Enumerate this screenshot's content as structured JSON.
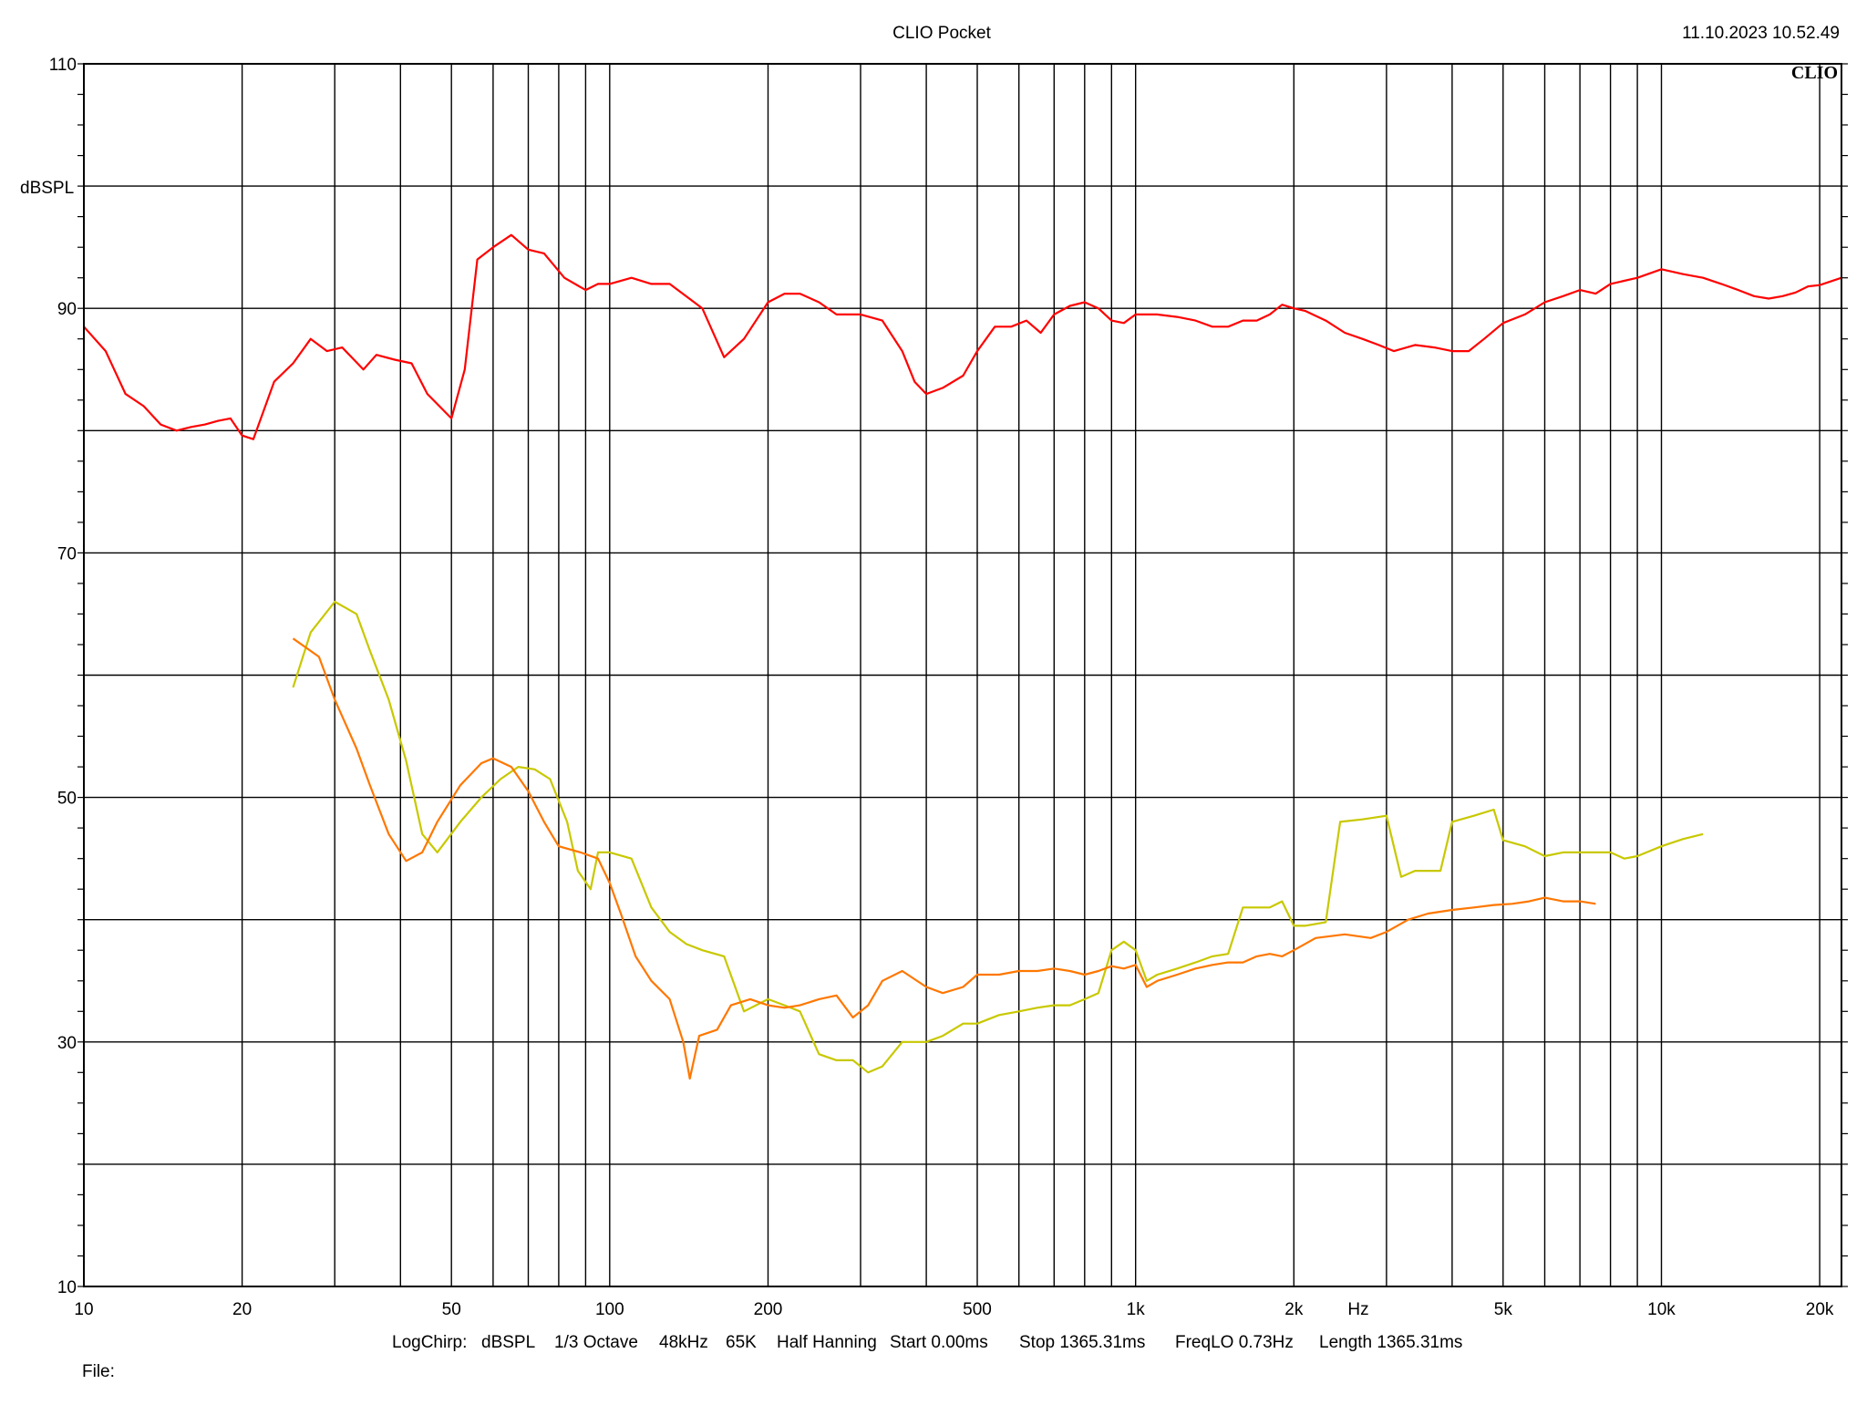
{
  "header": {
    "title": "CLIO Pocket",
    "timestamp": "11.10.2023 10.52.49",
    "logo": "CLIO"
  },
  "params": {
    "labels": [
      "LogChirp:",
      "dBSPL",
      "1/3 Octave",
      "48kHz",
      "65K",
      "Half Hanning",
      "Start 0.00ms",
      "Stop 1365.31ms",
      "FreqLO 0.73Hz",
      "Length 1365.31ms"
    ]
  },
  "footer": {
    "file_label": "File:"
  },
  "chart_data": {
    "type": "line",
    "title": "CLIO Pocket",
    "xlabel": "Hz",
    "ylabel": "dBSPL",
    "xscale": "log",
    "xlim": [
      10,
      22000
    ],
    "ylim": [
      10,
      110
    ],
    "grid": true,
    "xticks": [
      {
        "v": 10,
        "label": "10"
      },
      {
        "v": 20,
        "label": "20"
      },
      {
        "v": 50,
        "label": "50"
      },
      {
        "v": 100,
        "label": "100"
      },
      {
        "v": 200,
        "label": "200"
      },
      {
        "v": 500,
        "label": "500"
      },
      {
        "v": 1000,
        "label": "1k"
      },
      {
        "v": 2000,
        "label": "2k"
      },
      {
        "v": 5000,
        "label": "5k"
      },
      {
        "v": 10000,
        "label": "10k"
      },
      {
        "v": 20000,
        "label": "20k"
      }
    ],
    "xgrid": [
      10,
      20,
      30,
      40,
      50,
      60,
      70,
      80,
      90,
      100,
      200,
      300,
      400,
      500,
      600,
      700,
      800,
      900,
      1000,
      2000,
      3000,
      4000,
      5000,
      6000,
      7000,
      8000,
      9000,
      10000,
      20000
    ],
    "yticks": [
      {
        "v": 10,
        "label": "10"
      },
      {
        "v": 30,
        "label": "30"
      },
      {
        "v": 50,
        "label": "50"
      },
      {
        "v": 70,
        "label": "70"
      },
      {
        "v": 90,
        "label": "90"
      },
      {
        "v": 110,
        "label": "110"
      }
    ],
    "ygrid": [
      10,
      20,
      30,
      40,
      50,
      60,
      70,
      80,
      90,
      100,
      110
    ],
    "series": [
      {
        "color": "#ff0000",
        "points": [
          [
            10,
            88.5
          ],
          [
            11,
            86.5
          ],
          [
            12,
            83
          ],
          [
            13,
            82
          ],
          [
            14,
            80.5
          ],
          [
            15,
            80
          ],
          [
            16,
            80.3
          ],
          [
            17,
            80.5
          ],
          [
            18,
            80.8
          ],
          [
            19,
            81
          ],
          [
            20,
            79.6
          ],
          [
            21,
            79.3
          ],
          [
            23,
            84
          ],
          [
            25,
            85.5
          ],
          [
            27,
            87.5
          ],
          [
            29,
            86.5
          ],
          [
            31,
            86.8
          ],
          [
            34,
            85
          ],
          [
            36,
            86.2
          ],
          [
            39,
            85.8
          ],
          [
            42,
            85.5
          ],
          [
            45,
            83
          ],
          [
            50,
            81
          ],
          [
            53,
            85
          ],
          [
            56,
            94
          ],
          [
            60,
            95
          ],
          [
            65,
            96
          ],
          [
            70,
            94.8
          ],
          [
            75,
            94.5
          ],
          [
            82,
            92.5
          ],
          [
            90,
            91.5
          ],
          [
            95,
            92
          ],
          [
            100,
            92
          ],
          [
            110,
            92.5
          ],
          [
            120,
            92
          ],
          [
            130,
            92
          ],
          [
            150,
            90
          ],
          [
            165,
            86
          ],
          [
            180,
            87.5
          ],
          [
            200,
            90.5
          ],
          [
            215,
            91.2
          ],
          [
            230,
            91.2
          ],
          [
            250,
            90.5
          ],
          [
            270,
            89.5
          ],
          [
            300,
            89.5
          ],
          [
            330,
            89
          ],
          [
            360,
            86.5
          ],
          [
            380,
            84
          ],
          [
            400,
            83
          ],
          [
            430,
            83.5
          ],
          [
            470,
            84.5
          ],
          [
            500,
            86.5
          ],
          [
            540,
            88.5
          ],
          [
            580,
            88.5
          ],
          [
            620,
            89
          ],
          [
            660,
            88
          ],
          [
            700,
            89.5
          ],
          [
            750,
            90.2
          ],
          [
            800,
            90.5
          ],
          [
            850,
            90
          ],
          [
            900,
            89
          ],
          [
            950,
            88.8
          ],
          [
            1000,
            89.5
          ],
          [
            1100,
            89.5
          ],
          [
            1200,
            89.3
          ],
          [
            1300,
            89
          ],
          [
            1400,
            88.5
          ],
          [
            1500,
            88.5
          ],
          [
            1600,
            89
          ],
          [
            1700,
            89
          ],
          [
            1800,
            89.5
          ],
          [
            1900,
            90.3
          ],
          [
            2000,
            90
          ],
          [
            2100,
            89.8
          ],
          [
            2300,
            89
          ],
          [
            2500,
            88
          ],
          [
            2700,
            87.5
          ],
          [
            2900,
            87
          ],
          [
            3100,
            86.5
          ],
          [
            3400,
            87
          ],
          [
            3700,
            86.8
          ],
          [
            4000,
            86.5
          ],
          [
            4300,
            86.5
          ],
          [
            4600,
            87.5
          ],
          [
            5000,
            88.8
          ],
          [
            5500,
            89.5
          ],
          [
            6000,
            90.5
          ],
          [
            6500,
            91
          ],
          [
            7000,
            91.5
          ],
          [
            7500,
            91.2
          ],
          [
            8000,
            92
          ],
          [
            9000,
            92.5
          ],
          [
            10000,
            93.2
          ],
          [
            11000,
            92.8
          ],
          [
            12000,
            92.5
          ],
          [
            13000,
            92
          ],
          [
            14000,
            91.5
          ],
          [
            15000,
            91
          ],
          [
            16000,
            90.8
          ],
          [
            17000,
            91
          ],
          [
            18000,
            91.3
          ],
          [
            19000,
            91.8
          ],
          [
            20000,
            91.9
          ],
          [
            22000,
            92.5
          ]
        ]
      },
      {
        "color": "#c8c800",
        "points": [
          [
            25,
            59
          ],
          [
            27,
            63.5
          ],
          [
            30,
            66
          ],
          [
            33,
            65
          ],
          [
            35,
            62
          ],
          [
            38,
            58
          ],
          [
            41,
            53
          ],
          [
            44,
            47
          ],
          [
            47,
            45.5
          ],
          [
            52,
            48
          ],
          [
            57,
            50
          ],
          [
            62,
            51.5
          ],
          [
            67,
            52.5
          ],
          [
            72,
            52.3
          ],
          [
            77,
            51.5
          ],
          [
            83,
            48
          ],
          [
            87,
            44
          ],
          [
            92,
            42.5
          ],
          [
            95,
            45.5
          ],
          [
            100,
            45.5
          ],
          [
            110,
            45
          ],
          [
            120,
            41
          ],
          [
            130,
            39
          ],
          [
            140,
            38
          ],
          [
            150,
            37.5
          ],
          [
            165,
            37
          ],
          [
            180,
            32.5
          ],
          [
            200,
            33.5
          ],
          [
            215,
            33
          ],
          [
            230,
            32.5
          ],
          [
            250,
            29
          ],
          [
            270,
            28.5
          ],
          [
            290,
            28.5
          ],
          [
            310,
            27.5
          ],
          [
            330,
            28
          ],
          [
            360,
            30
          ],
          [
            400,
            30
          ],
          [
            430,
            30.5
          ],
          [
            470,
            31.5
          ],
          [
            500,
            31.5
          ],
          [
            550,
            32.2
          ],
          [
            600,
            32.5
          ],
          [
            650,
            32.8
          ],
          [
            700,
            33
          ],
          [
            750,
            33
          ],
          [
            800,
            33.5
          ],
          [
            850,
            34
          ],
          [
            900,
            37.5
          ],
          [
            950,
            38.2
          ],
          [
            1000,
            37.5
          ],
          [
            1050,
            35
          ],
          [
            1100,
            35.5
          ],
          [
            1200,
            36
          ],
          [
            1300,
            36.5
          ],
          [
            1400,
            37
          ],
          [
            1500,
            37.2
          ],
          [
            1600,
            41
          ],
          [
            1700,
            41
          ],
          [
            1800,
            41
          ],
          [
            1900,
            41.5
          ],
          [
            2000,
            39.5
          ],
          [
            2100,
            39.5
          ],
          [
            2300,
            39.8
          ],
          [
            2450,
            48
          ],
          [
            2700,
            48.2
          ],
          [
            3000,
            48.5
          ],
          [
            3200,
            43.5
          ],
          [
            3400,
            44
          ],
          [
            3800,
            44
          ],
          [
            4000,
            48
          ],
          [
            4400,
            48.5
          ],
          [
            4800,
            49
          ],
          [
            5000,
            46.5
          ],
          [
            5500,
            46
          ],
          [
            6000,
            45.2
          ],
          [
            6500,
            45.5
          ],
          [
            7000,
            45.5
          ],
          [
            7500,
            45.5
          ],
          [
            8000,
            45.5
          ],
          [
            8500,
            45
          ],
          [
            9000,
            45.2
          ],
          [
            10000,
            46
          ],
          [
            11000,
            46.6
          ],
          [
            12000,
            47
          ]
        ]
      },
      {
        "color": "#ff7700",
        "points": [
          [
            25,
            63
          ],
          [
            28,
            61.5
          ],
          [
            30,
            58
          ],
          [
            33,
            54
          ],
          [
            35,
            51
          ],
          [
            38,
            47
          ],
          [
            41,
            44.8
          ],
          [
            44,
            45.5
          ],
          [
            47,
            48
          ],
          [
            52,
            51
          ],
          [
            57,
            52.8
          ],
          [
            60,
            53.2
          ],
          [
            65,
            52.5
          ],
          [
            70,
            50.5
          ],
          [
            75,
            48
          ],
          [
            80,
            46
          ],
          [
            88,
            45.5
          ],
          [
            95,
            45
          ],
          [
            100,
            43
          ],
          [
            105,
            40.5
          ],
          [
            112,
            37
          ],
          [
            120,
            35
          ],
          [
            130,
            33.5
          ],
          [
            138,
            30
          ],
          [
            142,
            27
          ],
          [
            148,
            30.5
          ],
          [
            160,
            31
          ],
          [
            170,
            33
          ],
          [
            185,
            33.5
          ],
          [
            200,
            33
          ],
          [
            215,
            32.8
          ],
          [
            230,
            33
          ],
          [
            250,
            33.5
          ],
          [
            270,
            33.8
          ],
          [
            290,
            32
          ],
          [
            310,
            33
          ],
          [
            330,
            35
          ],
          [
            360,
            35.8
          ],
          [
            400,
            34.5
          ],
          [
            430,
            34
          ],
          [
            470,
            34.5
          ],
          [
            500,
            35.5
          ],
          [
            550,
            35.5
          ],
          [
            600,
            35.8
          ],
          [
            650,
            35.8
          ],
          [
            700,
            36
          ],
          [
            750,
            35.8
          ],
          [
            800,
            35.5
          ],
          [
            850,
            35.8
          ],
          [
            900,
            36.2
          ],
          [
            950,
            36
          ],
          [
            1000,
            36.3
          ],
          [
            1050,
            34.5
          ],
          [
            1100,
            35
          ],
          [
            1200,
            35.5
          ],
          [
            1300,
            36
          ],
          [
            1400,
            36.3
          ],
          [
            1500,
            36.5
          ],
          [
            1600,
            36.5
          ],
          [
            1700,
            37
          ],
          [
            1800,
            37.2
          ],
          [
            1900,
            37
          ],
          [
            2000,
            37.5
          ],
          [
            2200,
            38.5
          ],
          [
            2500,
            38.8
          ],
          [
            2800,
            38.5
          ],
          [
            3000,
            39
          ],
          [
            3300,
            40
          ],
          [
            3600,
            40.5
          ],
          [
            4000,
            40.8
          ],
          [
            4400,
            41
          ],
          [
            4800,
            41.2
          ],
          [
            5200,
            41.3
          ],
          [
            5600,
            41.5
          ],
          [
            6000,
            41.8
          ],
          [
            6500,
            41.5
          ],
          [
            7000,
            41.5
          ],
          [
            7500,
            41.3
          ]
        ]
      }
    ]
  }
}
